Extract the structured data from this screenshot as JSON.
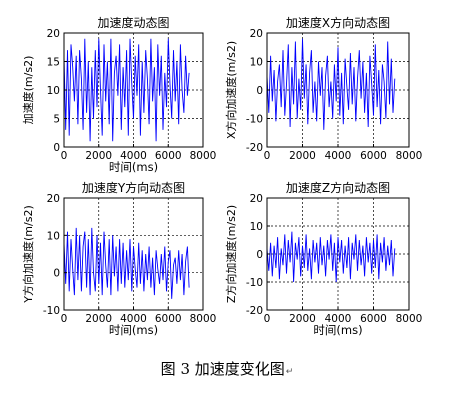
{
  "caption": {
    "text": "图 3  加速度变化图",
    "mark": "↵"
  },
  "colors": {
    "line": "#0000ff",
    "grid": "#000000",
    "axis": "#000000",
    "background": "#ffffff"
  },
  "chart_data": [
    {
      "type": "line",
      "title": "加速度动态图",
      "xlabel": "时间(ms)",
      "ylabel": "加速度(m/s2)",
      "xlim": [
        0,
        8000
      ],
      "ylim": [
        0,
        20
      ],
      "xticks": [
        0,
        2000,
        4000,
        6000,
        8000
      ],
      "yticks": [
        0,
        5,
        10,
        15,
        20
      ],
      "grid": true,
      "series": [
        {
          "x": [
            0,
            100,
            200,
            300,
            400,
            500,
            600,
            700,
            800,
            900,
            1000,
            1100,
            1200,
            1300,
            1400,
            1500,
            1600,
            1700,
            1800,
            1900,
            2000,
            2100,
            2200,
            2300,
            2400,
            2500,
            2600,
            2700,
            2800,
            2900,
            3000,
            3100,
            3200,
            3300,
            3400,
            3500,
            3600,
            3700,
            3800,
            3900,
            4000,
            4100,
            4200,
            4300,
            4400,
            4500,
            4600,
            4700,
            4800,
            4900,
            5000,
            5100,
            5200,
            5300,
            5400,
            5500,
            5600,
            5700,
            5800,
            5900,
            6000,
            6100,
            6200,
            6300,
            6400,
            6500,
            6600,
            6700,
            6800,
            6900,
            7000,
            7100,
            7200
          ],
          "values": [
            16,
            3,
            17,
            2,
            18,
            14,
            8,
            16,
            4,
            17,
            12,
            3,
            19,
            6,
            15,
            1,
            14,
            5,
            17,
            7,
            19,
            10,
            2,
            18,
            8,
            15,
            4,
            19,
            1,
            13,
            16,
            9,
            18,
            3,
            14,
            7,
            17,
            2,
            19,
            11,
            5,
            16,
            9,
            18,
            2,
            15,
            6,
            17,
            12,
            4,
            19,
            8,
            14,
            1,
            18,
            9,
            16,
            3,
            13,
            7,
            19,
            11,
            5,
            17,
            8,
            15,
            4,
            18,
            10,
            6,
            16,
            9,
            13
          ]
        }
      ]
    },
    {
      "type": "line",
      "title": "加速度X方向动态图",
      "xlabel": "",
      "ylabel": "X方向加速度(m/s2)",
      "xlim": [
        0,
        8000
      ],
      "ylim": [
        -20,
        20
      ],
      "xticks": [
        0,
        2000,
        4000,
        6000,
        8000
      ],
      "yticks": [
        -20,
        -10,
        0,
        10,
        20
      ],
      "grid": true,
      "series": [
        {
          "x": [
            0,
            100,
            200,
            300,
            400,
            500,
            600,
            700,
            800,
            900,
            1000,
            1100,
            1200,
            1300,
            1400,
            1500,
            1600,
            1700,
            1800,
            1900,
            2000,
            2100,
            2200,
            2300,
            2400,
            2500,
            2600,
            2700,
            2800,
            2900,
            3000,
            3100,
            3200,
            3300,
            3400,
            3500,
            3600,
            3700,
            3800,
            3900,
            4000,
            4100,
            4200,
            4300,
            4400,
            4500,
            4600,
            4700,
            4800,
            4900,
            5000,
            5100,
            5200,
            5300,
            5400,
            5500,
            5600,
            5700,
            5800,
            5900,
            6000,
            6100,
            6200,
            6300,
            6400,
            6500,
            6600,
            6700,
            6800,
            6900,
            7000,
            7100,
            7200
          ],
          "values": [
            5,
            -8,
            12,
            -4,
            7,
            -11,
            3,
            9,
            -6,
            14,
            -9,
            2,
            16,
            -13,
            8,
            -5,
            17,
            -10,
            4,
            -7,
            18,
            -3,
            9,
            -12,
            6,
            14,
            -8,
            3,
            -11,
            10,
            -2,
            8,
            -14,
            5,
            12,
            -6,
            3,
            -10,
            9,
            -4,
            15,
            -9,
            6,
            -12,
            11,
            1,
            -7,
            13,
            -5,
            8,
            -11,
            4,
            14,
            -3,
            10,
            -8,
            6,
            -13,
            12,
            2,
            -9,
            16,
            -6,
            7,
            -12,
            9,
            3,
            -10,
            17,
            -5,
            11,
            -8,
            4
          ]
        }
      ]
    },
    {
      "type": "line",
      "title": "加速度Y方向动态图",
      "xlabel": "时间(ms)",
      "ylabel": "Y方向加速度(m/s2)",
      "xlim": [
        0,
        8000
      ],
      "ylim": [
        -10,
        20
      ],
      "xticks": [
        0,
        2000,
        4000,
        6000,
        8000
      ],
      "yticks": [
        -10,
        0,
        10,
        20
      ],
      "grid": true,
      "series": [
        {
          "x": [
            0,
            100,
            200,
            300,
            400,
            500,
            600,
            700,
            800,
            900,
            1000,
            1100,
            1200,
            1300,
            1400,
            1500,
            1600,
            1700,
            1800,
            1900,
            2000,
            2100,
            2200,
            2300,
            2400,
            2500,
            2600,
            2700,
            2800,
            2900,
            3000,
            3100,
            3200,
            3300,
            3400,
            3500,
            3600,
            3700,
            3800,
            3900,
            4000,
            4100,
            4200,
            4300,
            4400,
            4500,
            4600,
            4700,
            4800,
            4900,
            5000,
            5100,
            5200,
            5300,
            5400,
            5500,
            5600,
            5700,
            5800,
            5900,
            6000,
            6100,
            6200,
            6300,
            6400,
            6500,
            6600,
            6700,
            6800,
            6900,
            7000,
            7100,
            7200
          ],
          "values": [
            8,
            -3,
            11,
            -5,
            9,
            1,
            -6,
            12,
            -2,
            10,
            -5,
            7,
            11,
            -4,
            9,
            -6,
            12,
            0,
            -5,
            10,
            -3,
            8,
            -6,
            11,
            2,
            -4,
            9,
            -6,
            10,
            -1,
            7,
            -5,
            9,
            -3,
            8,
            -4,
            6,
            -2,
            9,
            -5,
            7,
            1,
            -4,
            8,
            -3,
            6,
            -5,
            5,
            -2,
            7,
            -4,
            4,
            -6,
            6,
            1,
            -3,
            5,
            -2,
            7,
            -5,
            3,
            6,
            -7,
            2,
            4,
            -3,
            6,
            -2,
            5,
            -6,
            3,
            7,
            -4
          ]
        }
      ]
    },
    {
      "type": "line",
      "title": "加速度Z方向动态图",
      "xlabel": "时间(ms)",
      "ylabel": "Z方向加速度(m/s2)",
      "xlim": [
        0,
        8000
      ],
      "ylim": [
        -20,
        20
      ],
      "xticks": [
        0,
        2000,
        4000,
        6000,
        8000
      ],
      "yticks": [
        -20,
        -10,
        0,
        10,
        20
      ],
      "grid": true,
      "series": [
        {
          "x": [
            0,
            100,
            200,
            300,
            400,
            500,
            600,
            700,
            800,
            900,
            1000,
            1100,
            1200,
            1300,
            1400,
            1500,
            1600,
            1700,
            1800,
            1900,
            2000,
            2100,
            2200,
            2300,
            2400,
            2500,
            2600,
            2700,
            2800,
            2900,
            3000,
            3100,
            3200,
            3300,
            3400,
            3500,
            3600,
            3700,
            3800,
            3900,
            4000,
            4100,
            4200,
            4300,
            4400,
            4500,
            4600,
            4700,
            4800,
            4900,
            5000,
            5100,
            5200,
            5300,
            5400,
            5500,
            5600,
            5700,
            5800,
            5900,
            6000,
            6100,
            6200,
            6300,
            6400,
            6500,
            6600,
            6700,
            6800,
            6900,
            7000,
            7100,
            7200
          ],
          "values": [
            2,
            -6,
            4,
            -8,
            3,
            -5,
            6,
            -9,
            2,
            -4,
            7,
            -7,
            5,
            -3,
            8,
            -10,
            4,
            -2,
            6,
            -8,
            3,
            -5,
            7,
            -6,
            2,
            -9,
            5,
            -3,
            4,
            -7,
            6,
            -4,
            3,
            -8,
            5,
            -2,
            7,
            -6,
            4,
            -10,
            6,
            -3,
            5,
            -7,
            3,
            -5,
            6,
            -9,
            4,
            -2,
            7,
            -6,
            5,
            -4,
            3,
            -8,
            6,
            -3,
            4,
            -7,
            5,
            -5,
            7,
            -9,
            4,
            -3,
            6,
            -6,
            3,
            -4,
            5,
            -8,
            2
          ]
        }
      ]
    }
  ]
}
